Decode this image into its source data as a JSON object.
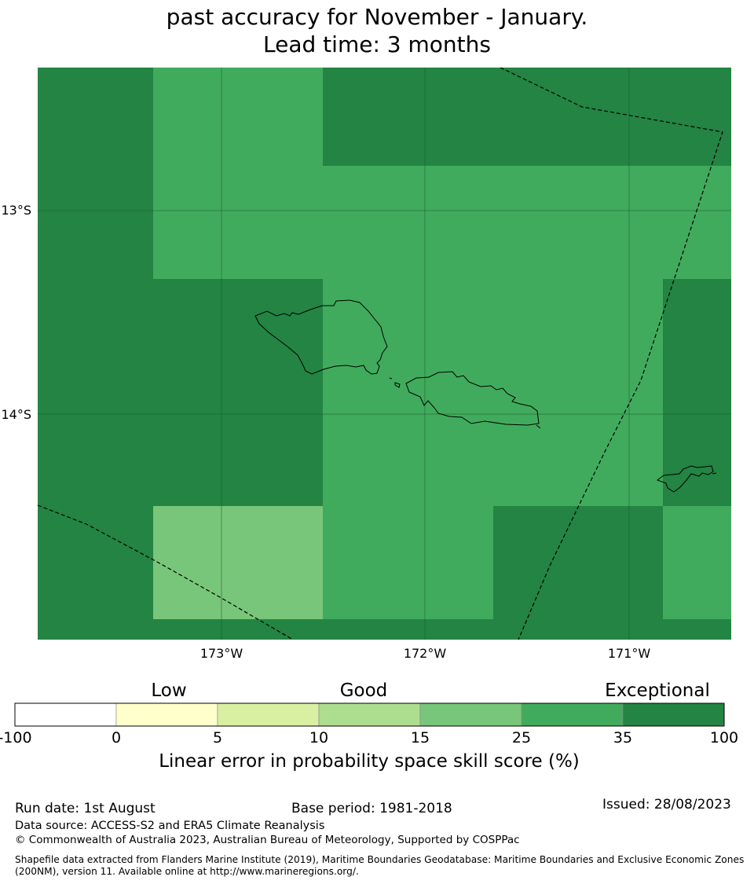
{
  "title": {
    "line1": "",
    "line2": "past accuracy for November - January.",
    "line3": "Lead time: 3 months"
  },
  "map": {
    "lon_ticks": [
      "173°W",
      "172°W",
      "171°W"
    ],
    "lat_ticks": [
      "13°S",
      "14°S"
    ],
    "colors": {
      "cat_35_100": "#238443",
      "cat_25_35": "#41ab5d",
      "cat_15_25": "#78c679",
      "coastline": "#000000",
      "boundary": "#000000",
      "gridline": "#1a5e2e"
    },
    "grid_note_categories": [
      "35-100",
      "25-35",
      "15-25"
    ],
    "features": [
      "land-outline-upolu-savaii",
      "land-outline-tutuila",
      "maritime-boundary-dashed"
    ]
  },
  "colorbar": {
    "category_labels": [
      "Low",
      "Good",
      "Exceptional"
    ],
    "ticks": [
      "-100",
      "0",
      "5",
      "10",
      "15",
      "25",
      "35",
      "100"
    ],
    "colors": [
      "#ffffff",
      "#ffffcc",
      "#d9f0a3",
      "#addd8e",
      "#78c679",
      "#41ab5d",
      "#238443"
    ],
    "title": "Linear error in probability space skill score (%)"
  },
  "footer": {
    "run_date": "Run date: 1st August",
    "base_period": "Base period: 1981-2018",
    "issued": "Issued: 28/08/2023",
    "data_source": "Data source: ACCESS-S2 and ERA5 Climate Reanalysis",
    "copyright": "© Commonwealth of Australia 2023, Australian Bureau of Meteorology, Supported by COSPPac",
    "shapefile": "Shapefile data extracted from Flanders Marine Institute (2019), Maritime Boundaries Geodatabase: Maritime Boundaries and Exclusive Economic Zones (200NM), version 11. Available online at http://www.marineregions.org/."
  }
}
